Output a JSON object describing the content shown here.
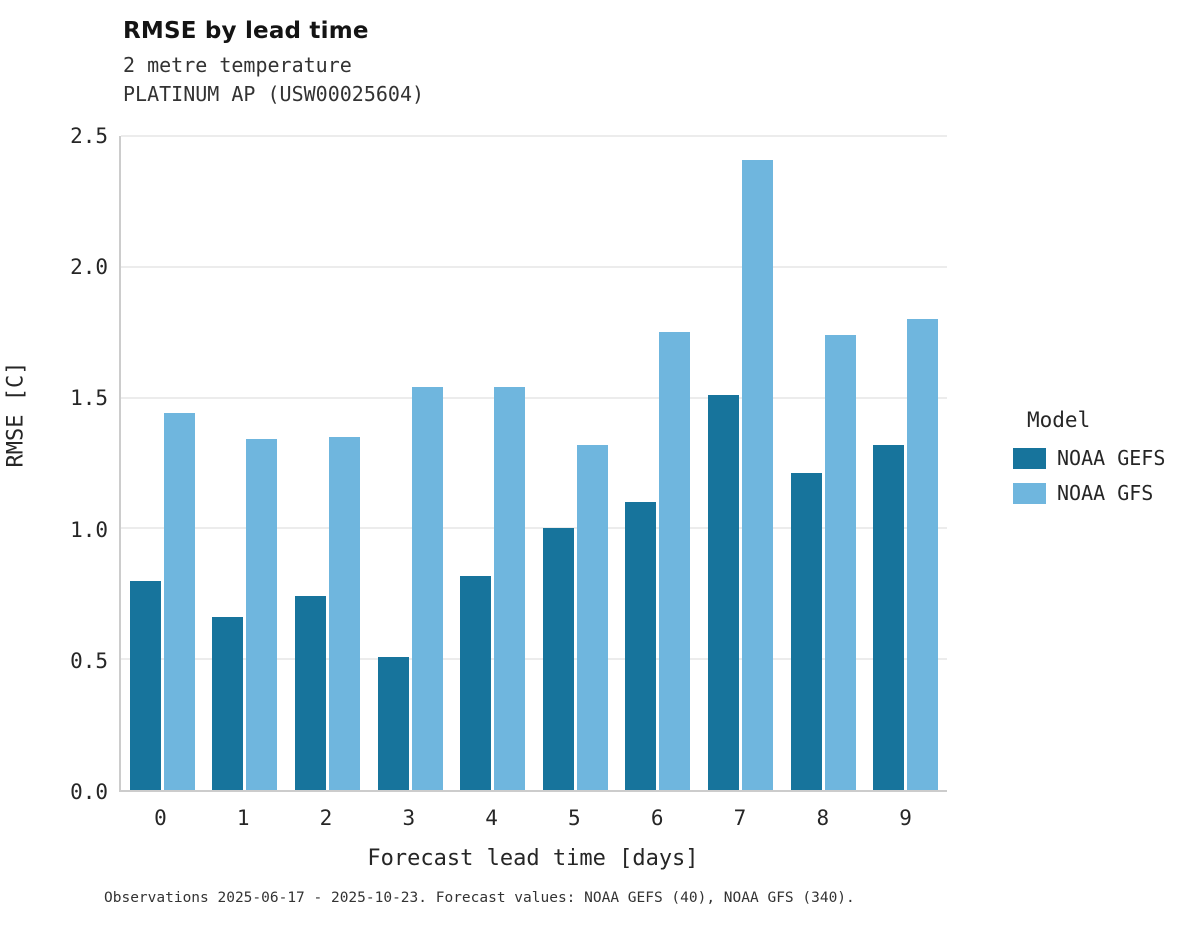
{
  "header": {
    "title": "RMSE by lead time",
    "subtitle_line1": "2 metre temperature",
    "subtitle_line2": "PLATINUM AP (USW00025604)"
  },
  "axes": {
    "xlabel": "Forecast lead time [days]",
    "ylabel": "RMSE [C]"
  },
  "legend": {
    "title": "Model",
    "items": [
      {
        "label": "NOAA GEFS",
        "color": "#17749c"
      },
      {
        "label": "NOAA GFS",
        "color": "#6fb6de"
      }
    ]
  },
  "caption": "Observations 2025-06-17 - 2025-10-23. Forecast values: NOAA GEFS (40), NOAA GFS (340).",
  "chart_data": {
    "type": "bar",
    "title": "RMSE by lead time",
    "subtitle": "2 metre temperature — PLATINUM AP (USW00025604)",
    "xlabel": "Forecast lead time [days]",
    "ylabel": "RMSE [C]",
    "categories": [
      "0",
      "1",
      "2",
      "3",
      "4",
      "5",
      "6",
      "7",
      "8",
      "9"
    ],
    "ylim": [
      0,
      2.5
    ],
    "yticks": [
      0.0,
      0.5,
      1.0,
      1.5,
      2.0,
      2.5
    ],
    "grid": true,
    "legend_position": "right",
    "series": [
      {
        "name": "NOAA GEFS",
        "color": "#17749c",
        "values": [
          0.8,
          0.66,
          0.74,
          0.51,
          0.82,
          1.0,
          1.1,
          1.51,
          1.21,
          1.32
        ]
      },
      {
        "name": "NOAA GFS",
        "color": "#6fb6de",
        "values": [
          1.44,
          1.34,
          1.35,
          1.54,
          1.54,
          1.32,
          1.75,
          2.41,
          1.74,
          1.8
        ]
      }
    ]
  }
}
